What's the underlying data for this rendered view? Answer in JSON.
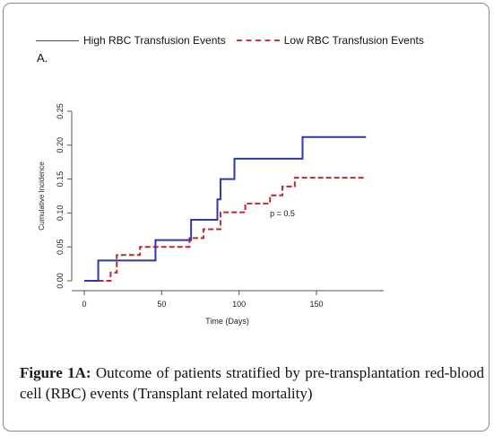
{
  "legend": {
    "high_label": "High RBC Transfusion Events",
    "low_label": "Low RBC Transfusion Events"
  },
  "panel_label": "A.",
  "caption": {
    "label": "Figure 1A:",
    "text": "Outcome of patients stratified by pre-transplantation red-blood cell (RBC) events (Transplant related mortality)"
  },
  "colors": {
    "high": "#2a3aa8",
    "low": "#c0282b"
  },
  "chart_data": {
    "type": "line",
    "step": true,
    "xlabel": "Time (Days)",
    "ylabel": "Cumulative Incidence",
    "xlim": [
      0,
      185
    ],
    "ylim": [
      0,
      0.25
    ],
    "x_ticks": [
      0,
      50,
      100,
      150
    ],
    "y_ticks": [
      0.0,
      0.05,
      0.1,
      0.15,
      0.2,
      0.25
    ],
    "y_tick_labels": [
      "0.00",
      "0.05",
      "0.10",
      "0.15",
      "0.20",
      "0.25"
    ],
    "grid": false,
    "legend_position": "top",
    "annotations": [
      {
        "text": "p = 0.5",
        "x": 128,
        "y": 0.095
      }
    ],
    "series": [
      {
        "name": "High RBC Transfusion Events",
        "style": "solid",
        "x": [
          0,
          9,
          46,
          69,
          86,
          88,
          97,
          141,
          182
        ],
        "y": [
          0,
          0.03,
          0.06,
          0.09,
          0.12,
          0.15,
          0.18,
          0.212,
          0.212
        ]
      },
      {
        "name": "Low RBC Transfusion Events",
        "style": "dashed",
        "x": [
          9,
          17,
          21,
          36,
          68,
          77,
          88,
          104,
          120,
          128,
          136,
          182
        ],
        "y": [
          0,
          0.012,
          0.038,
          0.05,
          0.063,
          0.076,
          0.101,
          0.114,
          0.126,
          0.139,
          0.152,
          0.152
        ]
      }
    ]
  }
}
